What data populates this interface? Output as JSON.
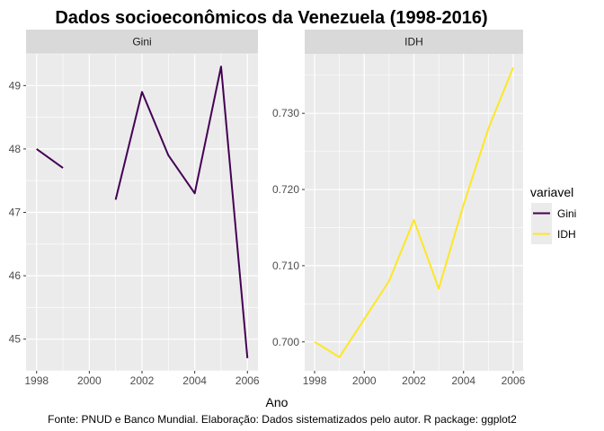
{
  "chart_data": {
    "type": "line",
    "title": "Dados socioeconômicos da Venezuela (1998-2016)",
    "xlabel": "Ano",
    "ylabel": "",
    "caption": "Fonte: PNUD e Banco Mundial. Elaboração: Dados sistematizados pelo autor. R package: ggplot2",
    "legend": {
      "title": "variavel",
      "placement": "right",
      "entries": [
        {
          "name": "Gini",
          "color": "#440154"
        },
        {
          "name": "IDH",
          "color": "#FDE725"
        }
      ]
    },
    "panels": [
      {
        "strip": "Gini",
        "series": "Gini",
        "color": "#440154",
        "xlim": [
          1997.6,
          2006.4
        ],
        "ylim": [
          44.5,
          49.5
        ],
        "x_ticks": [
          1998,
          2000,
          2002,
          2004,
          2006
        ],
        "y_ticks": [
          45,
          46,
          47,
          48,
          49
        ],
        "y_tick_labels": [
          "45",
          "46",
          "47",
          "48",
          "49"
        ],
        "segments": [
          [
            [
              1998,
              48.0
            ],
            [
              1999,
              47.7
            ]
          ],
          [
            [
              2001,
              47.2
            ],
            [
              2002,
              48.9
            ],
            [
              2003,
              47.9
            ],
            [
              2004,
              47.3
            ],
            [
              2005,
              49.3
            ],
            [
              2006,
              44.7
            ]
          ]
        ]
      },
      {
        "strip": "IDH",
        "series": "IDH",
        "color": "#FDE725",
        "xlim": [
          1997.6,
          2006.4
        ],
        "ylim": [
          0.6962,
          0.7378
        ],
        "x_ticks": [
          1998,
          2000,
          2002,
          2004,
          2006
        ],
        "y_ticks": [
          0.7,
          0.71,
          0.72,
          0.73
        ],
        "y_tick_labels": [
          "0.700",
          "0.710",
          "0.720",
          "0.730"
        ],
        "segments": [
          [
            [
              1998,
              0.7
            ],
            [
              1999,
              0.698
            ],
            [
              2000,
              0.703
            ],
            [
              2001,
              0.708
            ],
            [
              2002,
              0.716
            ],
            [
              2003,
              0.707
            ],
            [
              2004,
              0.718
            ],
            [
              2005,
              0.728
            ],
            [
              2006,
              0.736
            ]
          ]
        ]
      }
    ],
    "grid": true,
    "panel_background": "#EBEBEB",
    "strip_background": "#D9D9D9"
  }
}
